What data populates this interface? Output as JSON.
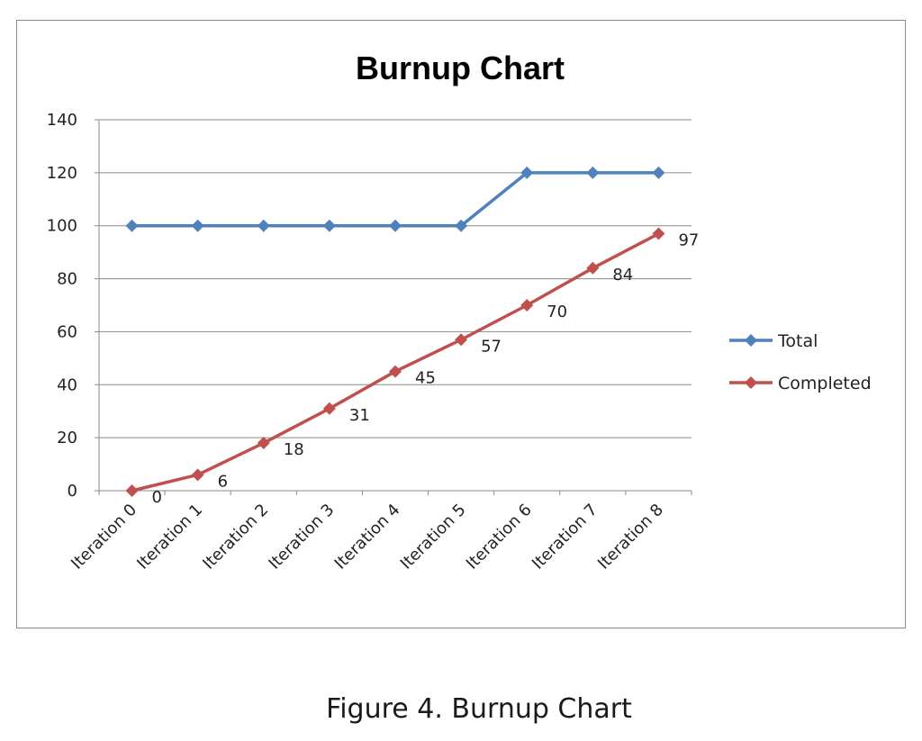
{
  "caption": "Figure 4. Burnup Chart",
  "chart_data": {
    "type": "line",
    "title": "Burnup Chart",
    "xlabel": "",
    "ylabel": "",
    "categories": [
      "Iteration 0",
      "Iteration 1",
      "Iteration 2",
      "Iteration 3",
      "Iteration 4",
      "Iteration 5",
      "Iteration 6",
      "Iteration 7",
      "Iteration 8"
    ],
    "ylim": [
      0,
      140
    ],
    "yticks": [
      0,
      20,
      40,
      60,
      80,
      100,
      120,
      140
    ],
    "grid": true,
    "legend_position": "right",
    "series": [
      {
        "name": "Total",
        "values": [
          100,
          100,
          100,
          100,
          100,
          100,
          120,
          120,
          120
        ],
        "color": "#4f81bd",
        "marker": "diamond",
        "data_labels": false
      },
      {
        "name": "Completed",
        "values": [
          0,
          6,
          18,
          31,
          45,
          57,
          70,
          84,
          97
        ],
        "color": "#c0504d",
        "marker": "diamond",
        "data_labels": true
      }
    ]
  }
}
